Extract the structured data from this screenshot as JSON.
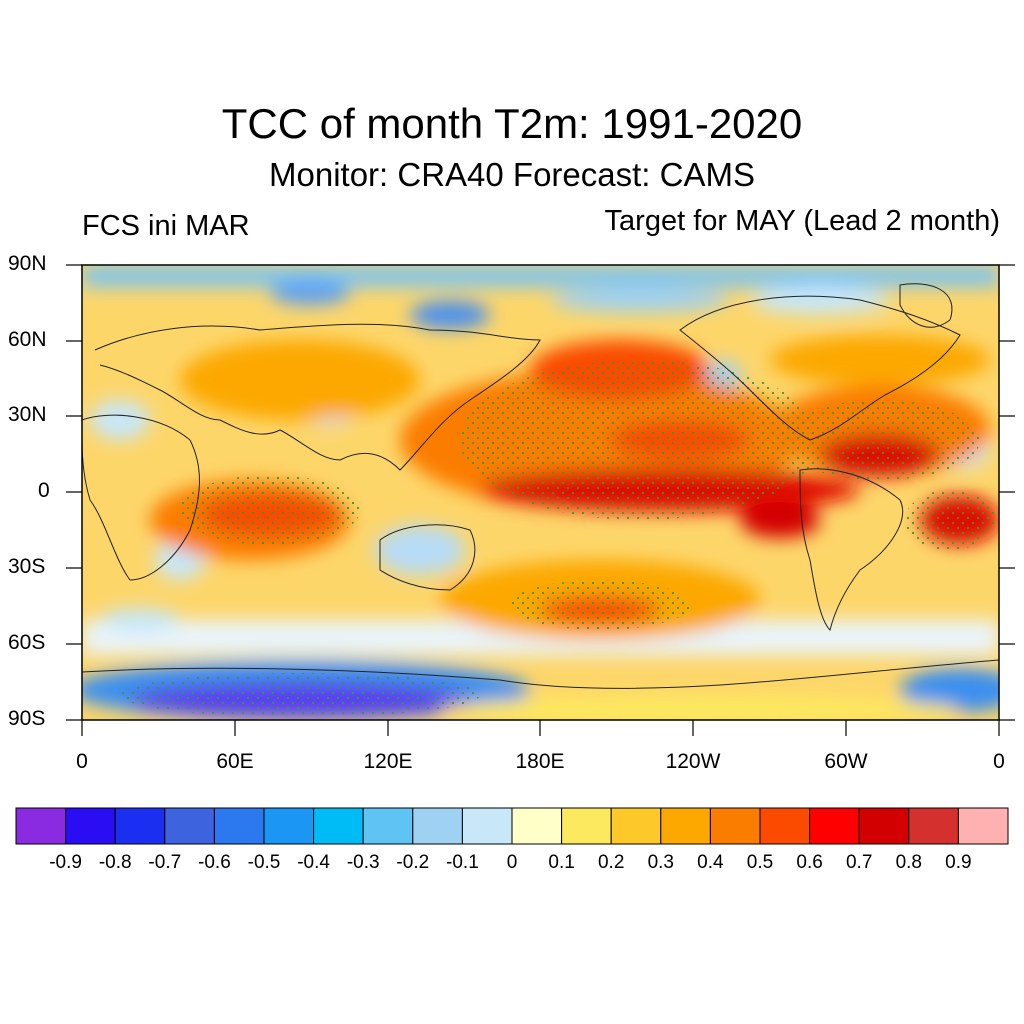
{
  "title": "TCC of month T2m: 1991-2020",
  "subtitle": "Monitor: CRA40   Forecast: CAMS",
  "left_label": "FCS ini MAR",
  "right_label": "Target for MAY (Lead 2 month)",
  "lat_ticks": [
    "90N",
    "60N",
    "30N",
    "0",
    "30S",
    "60S",
    "90S"
  ],
  "lon_ticks": [
    "0",
    "60E",
    "120E",
    "180E",
    "120W",
    "60W",
    "0"
  ],
  "colorbar": {
    "colors": [
      "#8a2be2",
      "#2a0df2",
      "#1a2ff0",
      "#3e63df",
      "#2c78ee",
      "#1c96f5",
      "#00bcf6",
      "#5fc3f3",
      "#9fd1f2",
      "#c8e7f8",
      "#ffffc8",
      "#fde95f",
      "#fdc82a",
      "#fca800",
      "#fb7d00",
      "#fa4b00",
      "#ff0000",
      "#d20000",
      "#d4302e",
      "#ffb0b0"
    ],
    "labels": [
      "-0.9",
      "-0.8",
      "-0.7",
      "-0.6",
      "-0.5",
      "-0.4",
      "-0.3",
      "-0.2",
      "-0.1",
      "0",
      "0.1",
      "0.2",
      "0.3",
      "0.4",
      "0.5",
      "0.6",
      "0.7",
      "0.8",
      "0.9"
    ]
  }
}
